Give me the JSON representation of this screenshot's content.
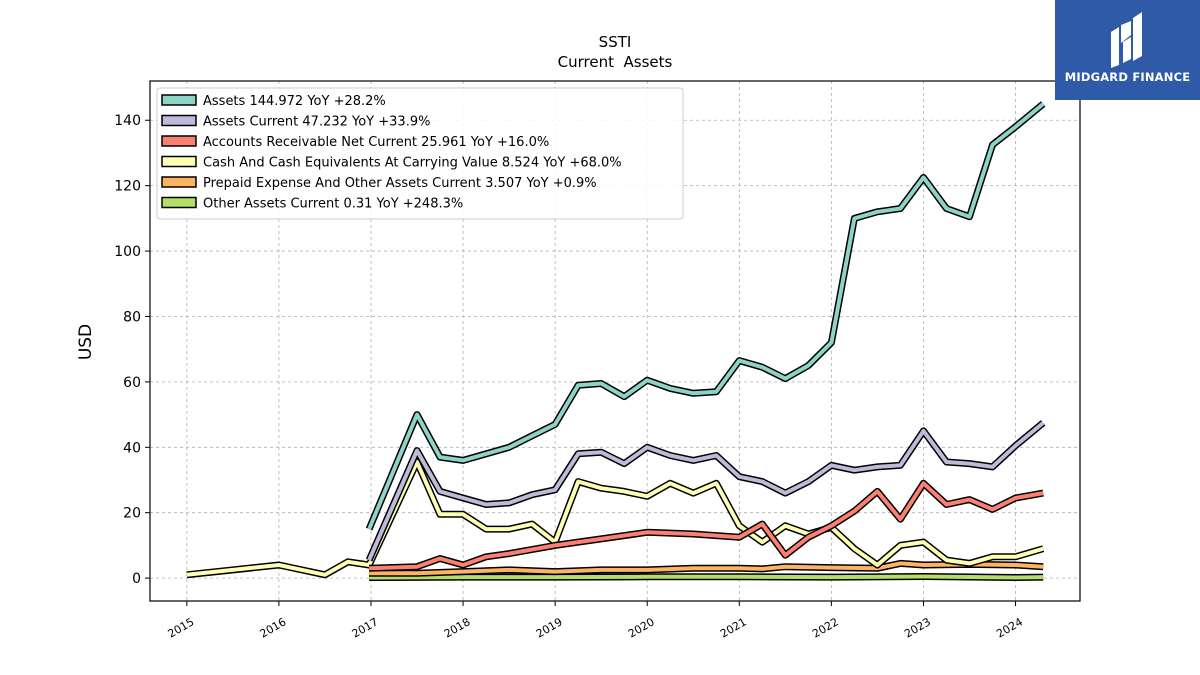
{
  "logo": {
    "text": "MIDGARD FINANCE",
    "color": "#2f5aa8"
  },
  "chart_data": {
    "type": "line",
    "title": "SSTI",
    "subtitle": "Current  Assets",
    "ylabel": "USD",
    "xlabel": "",
    "xlim": [
      2014.6,
      2024.7
    ],
    "ylim": [
      -7,
      152
    ],
    "xticks": [
      2015,
      2016,
      2017,
      2018,
      2019,
      2020,
      2021,
      2022,
      2023,
      2024
    ],
    "xtick_labels": [
      "2015",
      "2016",
      "2017",
      "2018",
      "2019",
      "2020",
      "2021",
      "2022",
      "2023",
      "2024"
    ],
    "yticks": [
      0,
      20,
      40,
      60,
      80,
      100,
      120,
      140
    ],
    "ytick_labels": [
      "0",
      "20",
      "40",
      "60",
      "80",
      "100",
      "120",
      "140"
    ],
    "grid": true,
    "legend_position": "top-left",
    "series": [
      {
        "name": "Assets  144.972 YoY +28.2%",
        "color": "#8dd3c7",
        "points": [
          [
            2016.98,
            15
          ],
          [
            2017.5,
            50
          ],
          [
            2017.75,
            37
          ],
          [
            2018.0,
            36
          ],
          [
            2018.5,
            40
          ],
          [
            2018.75,
            43.5
          ],
          [
            2019.0,
            47
          ],
          [
            2019.25,
            59
          ],
          [
            2019.5,
            59.5
          ],
          [
            2019.75,
            55.5
          ],
          [
            2020.0,
            60.5
          ],
          [
            2020.25,
            58
          ],
          [
            2020.5,
            56.5
          ],
          [
            2020.75,
            57
          ],
          [
            2021.0,
            66.5
          ],
          [
            2021.25,
            64.5
          ],
          [
            2021.5,
            61
          ],
          [
            2021.75,
            65
          ],
          [
            2022.0,
            72
          ],
          [
            2022.25,
            110
          ],
          [
            2022.5,
            112
          ],
          [
            2022.75,
            113
          ],
          [
            2023.0,
            122.5
          ],
          [
            2023.25,
            113
          ],
          [
            2023.5,
            110.5
          ],
          [
            2023.75,
            132.5
          ],
          [
            2024.0,
            138
          ],
          [
            2024.3,
            145
          ]
        ]
      },
      {
        "name": "Assets Current  47.232 YoY +33.9%",
        "color": "#bebada",
        "points": [
          [
            2016.98,
            5.5
          ],
          [
            2017.5,
            39
          ],
          [
            2017.75,
            26.5
          ],
          [
            2018.0,
            24.5
          ],
          [
            2018.25,
            22.5
          ],
          [
            2018.5,
            23
          ],
          [
            2018.75,
            25.5
          ],
          [
            2019.0,
            27
          ],
          [
            2019.25,
            38
          ],
          [
            2019.5,
            38.5
          ],
          [
            2019.75,
            35
          ],
          [
            2020.0,
            40
          ],
          [
            2020.25,
            37.5
          ],
          [
            2020.5,
            36
          ],
          [
            2020.75,
            37.5
          ],
          [
            2021.0,
            31
          ],
          [
            2021.25,
            29.5
          ],
          [
            2021.5,
            26
          ],
          [
            2021.75,
            29.5
          ],
          [
            2022.0,
            34.5
          ],
          [
            2022.25,
            33
          ],
          [
            2022.5,
            34
          ],
          [
            2022.75,
            34.5
          ],
          [
            2023.0,
            45
          ],
          [
            2023.25,
            35.5
          ],
          [
            2023.5,
            35
          ],
          [
            2023.75,
            34
          ],
          [
            2024.0,
            40.5
          ],
          [
            2024.3,
            47.5
          ]
        ]
      },
      {
        "name": "Accounts Receivable Net Current  25.961 YoY +16.0%",
        "color": "#fb8072",
        "points": [
          [
            2016.98,
            3
          ],
          [
            2017.5,
            3.5
          ],
          [
            2017.75,
            6
          ],
          [
            2018.0,
            4
          ],
          [
            2018.25,
            6.5
          ],
          [
            2018.5,
            7.5
          ],
          [
            2019.0,
            10
          ],
          [
            2019.5,
            12
          ],
          [
            2020.0,
            14
          ],
          [
            2020.5,
            13.5
          ],
          [
            2021.0,
            12.5
          ],
          [
            2021.25,
            16.5
          ],
          [
            2021.5,
            7
          ],
          [
            2021.75,
            12.5
          ],
          [
            2022.0,
            16
          ],
          [
            2022.25,
            20.5
          ],
          [
            2022.5,
            26.5
          ],
          [
            2022.75,
            18
          ],
          [
            2023.0,
            29
          ],
          [
            2023.25,
            22.5
          ],
          [
            2023.5,
            24
          ],
          [
            2023.75,
            21
          ],
          [
            2024.0,
            24.5
          ],
          [
            2024.3,
            26
          ]
        ]
      },
      {
        "name": "Cash And Cash Equivalents At Carrying Value  8.524 YoY +68.0%",
        "color": "#ffffb3",
        "points": [
          [
            2015.0,
            1
          ],
          [
            2016.0,
            4
          ],
          [
            2016.5,
            1
          ],
          [
            2016.75,
            5
          ],
          [
            2016.98,
            4
          ],
          [
            2017.5,
            35.5
          ],
          [
            2017.75,
            19.5
          ],
          [
            2018.0,
            19.5
          ],
          [
            2018.25,
            15
          ],
          [
            2018.5,
            15
          ],
          [
            2018.75,
            16.5
          ],
          [
            2019.0,
            11
          ],
          [
            2019.25,
            29.5
          ],
          [
            2019.5,
            27.5
          ],
          [
            2019.75,
            26.5
          ],
          [
            2020.0,
            25
          ],
          [
            2020.25,
            29
          ],
          [
            2020.5,
            26
          ],
          [
            2020.75,
            29
          ],
          [
            2021.0,
            16
          ],
          [
            2021.25,
            11
          ],
          [
            2021.5,
            16
          ],
          [
            2021.75,
            13.5
          ],
          [
            2022.0,
            15.5
          ],
          [
            2022.25,
            9
          ],
          [
            2022.5,
            4
          ],
          [
            2022.75,
            10
          ],
          [
            2023.0,
            11
          ],
          [
            2023.25,
            5.5
          ],
          [
            2023.5,
            4.5
          ],
          [
            2023.75,
            6.5
          ],
          [
            2024.0,
            6.5
          ],
          [
            2024.3,
            9
          ]
        ]
      },
      {
        "name": "Prepaid Expense And Other Assets Current  3.507 YoY +0.9%",
        "color": "#fdb462",
        "points": [
          [
            2016.98,
            1.5
          ],
          [
            2017.5,
            1.5
          ],
          [
            2018.0,
            2
          ],
          [
            2018.5,
            2.5
          ],
          [
            2019.0,
            2
          ],
          [
            2019.5,
            2.5
          ],
          [
            2020.0,
            2.5
          ],
          [
            2020.5,
            3
          ],
          [
            2021.0,
            3
          ],
          [
            2021.25,
            2.8
          ],
          [
            2021.5,
            3.5
          ],
          [
            2022.0,
            3.2
          ],
          [
            2022.5,
            3
          ],
          [
            2022.75,
            4.5
          ],
          [
            2023.0,
            4
          ],
          [
            2023.5,
            4.2
          ],
          [
            2024.0,
            4
          ],
          [
            2024.3,
            3.5
          ]
        ]
      },
      {
        "name": "Other Assets Current  0.31 YoY +248.3%",
        "color": "#b3de69",
        "points": [
          [
            2016.98,
            0.2
          ],
          [
            2018.0,
            0.3
          ],
          [
            2019.0,
            0.3
          ],
          [
            2020.0,
            0.4
          ],
          [
            2021.0,
            0.4
          ],
          [
            2022.0,
            0.3
          ],
          [
            2023.0,
            0.5
          ],
          [
            2024.0,
            0.2
          ],
          [
            2024.3,
            0.3
          ]
        ]
      }
    ]
  }
}
